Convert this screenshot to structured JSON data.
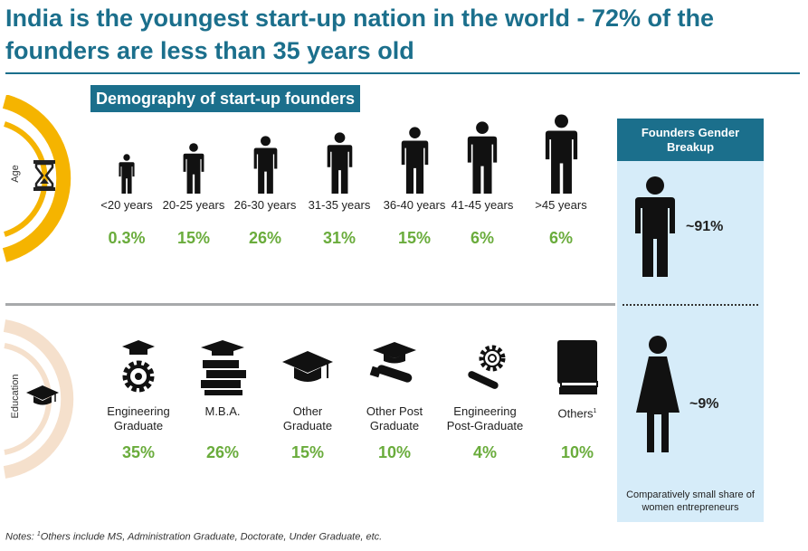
{
  "title": "India is the youngest start-up nation in the world - 72% of the founders are less than 35 years old",
  "demography_label": "Demography of start-up founders",
  "age_side_label": "Age",
  "education_side_label": "Education",
  "gender_header": "Founders Gender Breakup",
  "gender_note": "Comparatively small share of women entrepreneurs",
  "notes": {
    "prefix": "Notes: ",
    "sup": "1",
    "text": "Others include MS, Administration Graduate, Doctorate, Under Graduate, etc."
  },
  "colors": {
    "brand": "#1b6f8c",
    "value_green": "#6aac3c",
    "age_arc": "#f5b400",
    "edu_arc": "#f5e0cc",
    "gender_panel": "#d6ecf9"
  },
  "chart_data": [
    {
      "type": "table",
      "title": "",
      "dimension": "Age",
      "categories": [
        "<20 years",
        "20-25 years",
        "26-30 years",
        "31-35 years",
        "36-40 years",
        "41-45 years",
        ">45 years"
      ],
      "values": [
        0.3,
        15,
        26,
        31,
        15,
        6,
        6
      ],
      "value_labels": [
        "0.3%",
        "15%",
        "26%",
        "31%",
        "15%",
        "6%",
        "6%"
      ],
      "unit": "%"
    },
    {
      "type": "table",
      "title": "",
      "dimension": "Education",
      "categories": [
        "Engineering Graduate",
        "M.B.A.",
        "Other Graduate",
        "Other Post Graduate",
        "Engineering Post-Graduate",
        "Others"
      ],
      "category_icons": [
        "gear-cap-icon",
        "books-cap-icon",
        "graduation-cap-icon",
        "diploma-cap-icon",
        "gear-diploma-icon",
        "book-icon"
      ],
      "values": [
        35,
        26,
        15,
        10,
        4,
        10
      ],
      "value_labels": [
        "35%",
        "26%",
        "15%",
        "10%",
        "4%",
        "10%"
      ],
      "others_footnote_mark": "1",
      "unit": "%"
    },
    {
      "type": "table",
      "title": "Founders Gender Breakup",
      "categories": [
        "male",
        "female"
      ],
      "category_icons": [
        "male-person-icon",
        "female-person-icon"
      ],
      "values": [
        91,
        9
      ],
      "value_labels": [
        "~91%",
        "~9%"
      ],
      "unit": "%"
    }
  ]
}
